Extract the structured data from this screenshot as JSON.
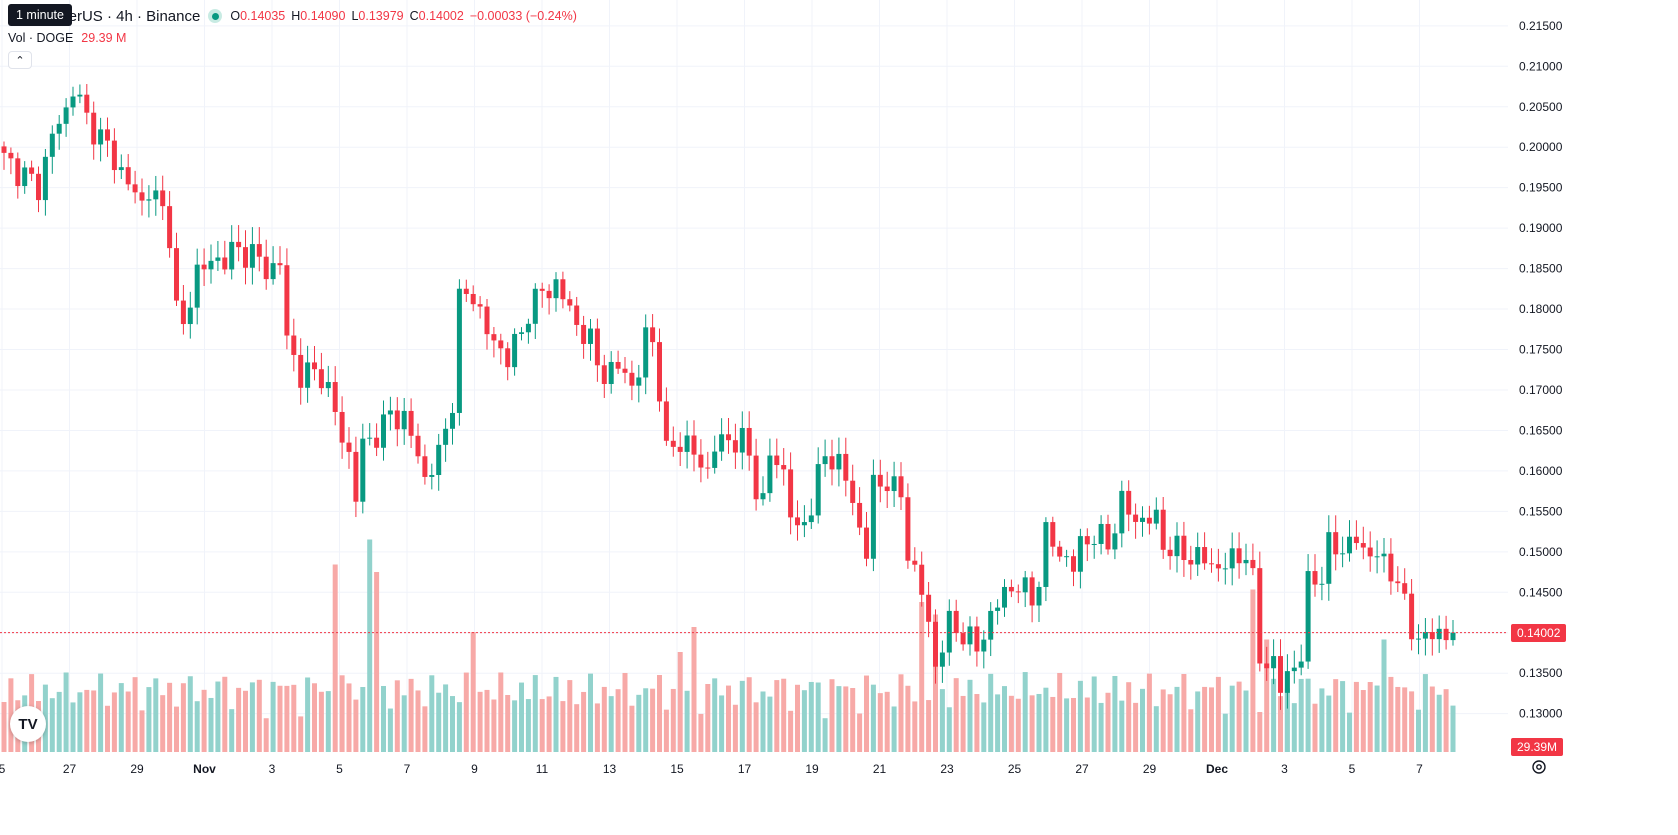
{
  "legend": {
    "symbol": "oin / TetherUS · 4h · Binance",
    "open_label": "O",
    "open": "0.14035",
    "high_label": "H",
    "high": "0.14090",
    "low_label": "L",
    "low": "0.13979",
    "close_label": "C",
    "close": "0.14002",
    "change": "−0.00033 (−0.24%)",
    "tooltip": "1 minute"
  },
  "volume_indicator": {
    "label": "Vol · DOGE",
    "value": "29.39 M"
  },
  "price_tag": {
    "last_price": "0.14002",
    "volume": "29.39M"
  },
  "colors": {
    "up": "#089981",
    "down": "#f23645",
    "up_volume": "#92d2cc",
    "down_volume": "#f7a9a7",
    "grid": "#f0f3fa"
  },
  "icons": {
    "logo": "tradingview-logo-icon",
    "collapse": "chevron-up-icon",
    "settings": "gear-icon",
    "status": "market-open-dot-icon"
  },
  "chart_data": {
    "type": "candlestick",
    "y_ticks": [
      "0.13000",
      "0.13500",
      "0.14000",
      "0.14500",
      "0.15000",
      "0.15500",
      "0.16000",
      "0.16500",
      "0.17000",
      "0.17500",
      "0.18000",
      "0.18500",
      "0.19000",
      "0.19500",
      "0.20000",
      "0.20500",
      "0.21000",
      "0.21500"
    ],
    "x_ticks": [
      "5",
      "27",
      "29",
      "Nov",
      "3",
      "5",
      "7",
      "9",
      "11",
      "13",
      "15",
      "17",
      "19",
      "21",
      "23",
      "25",
      "27",
      "29",
      "Dec",
      "3",
      "5",
      "7"
    ],
    "ylim": [
      0.1265,
      0.2165
    ],
    "last_price": 0.14002,
    "anchors": [
      [
        0,
        0.1985
      ],
      [
        3,
        0.1965
      ],
      [
        5,
        0.195
      ],
      [
        7,
        0.2015
      ],
      [
        9,
        0.2045
      ],
      [
        10,
        0.2075
      ],
      [
        12,
        0.2035
      ],
      [
        15,
        0.2
      ],
      [
        18,
        0.1955
      ],
      [
        20,
        0.193
      ],
      [
        21,
        0.195
      ],
      [
        23,
        0.192
      ],
      [
        24,
        0.1895
      ],
      [
        25,
        0.18
      ],
      [
        26,
        0.1775
      ],
      [
        28,
        0.185
      ],
      [
        30,
        0.1855
      ],
      [
        33,
        0.187
      ],
      [
        36,
        0.187
      ],
      [
        37,
        0.186
      ],
      [
        38,
        0.1845
      ],
      [
        40,
        0.186
      ],
      [
        41,
        0.176
      ],
      [
        43,
        0.172
      ],
      [
        46,
        0.172
      ],
      [
        47,
        0.17
      ],
      [
        49,
        0.164
      ],
      [
        50,
        0.162
      ],
      [
        51,
        0.157
      ],
      [
        52,
        0.163
      ],
      [
        55,
        0.1655
      ],
      [
        56,
        0.167
      ],
      [
        58,
        0.1665
      ],
      [
        60,
        0.162
      ],
      [
        61,
        0.159
      ],
      [
        63,
        0.162
      ],
      [
        64,
        0.165
      ],
      [
        65,
        0.169
      ],
      [
        66,
        0.181
      ],
      [
        68,
        0.182
      ],
      [
        70,
        0.177
      ],
      [
        72,
        0.175
      ],
      [
        73,
        0.174
      ],
      [
        75,
        0.177
      ],
      [
        76,
        0.18
      ],
      [
        78,
        0.182
      ],
      [
        80,
        0.183
      ],
      [
        82,
        0.18
      ],
      [
        83,
        0.178
      ],
      [
        85,
        0.176
      ],
      [
        86,
        0.173
      ],
      [
        88,
        0.172
      ],
      [
        90,
        0.173
      ],
      [
        91,
        0.17
      ],
      [
        92,
        0.172
      ],
      [
        93,
        0.177
      ],
      [
        94,
        0.176
      ],
      [
        95,
        0.17
      ],
      [
        96,
        0.162
      ],
      [
        98,
        0.164
      ],
      [
        100,
        0.162
      ],
      [
        102,
        0.16
      ],
      [
        103,
        0.163
      ],
      [
        105,
        0.164
      ],
      [
        107,
        0.1635
      ],
      [
        108,
        0.162
      ],
      [
        109,
        0.158
      ],
      [
        110,
        0.156
      ],
      [
        111,
        0.162
      ],
      [
        113,
        0.16
      ],
      [
        114,
        0.155
      ],
      [
        115,
        0.152
      ],
      [
        117,
        0.156
      ],
      [
        119,
        0.162
      ],
      [
        121,
        0.161
      ],
      [
        122,
        0.159
      ],
      [
        123,
        0.156
      ],
      [
        125,
        0.15
      ],
      [
        126,
        0.158
      ],
      [
        128,
        0.159
      ],
      [
        129,
        0.1575
      ],
      [
        130,
        0.157
      ],
      [
        131,
        0.15
      ],
      [
        133,
        0.145
      ],
      [
        134,
        0.141
      ],
      [
        135,
        0.136
      ],
      [
        137,
        0.141
      ],
      [
        139,
        0.14
      ],
      [
        141,
        0.138
      ],
      [
        143,
        0.142
      ],
      [
        145,
        0.145
      ],
      [
        147,
        0.146
      ],
      [
        149,
        0.144
      ],
      [
        150,
        0.147
      ],
      [
        151,
        0.152
      ],
      [
        153,
        0.15
      ],
      [
        155,
        0.148
      ],
      [
        156,
        0.151
      ],
      [
        158,
        0.152
      ],
      [
        160,
        0.151
      ],
      [
        162,
        0.156
      ],
      [
        164,
        0.154
      ],
      [
        167,
        0.154
      ],
      [
        168,
        0.151
      ],
      [
        170,
        0.15
      ],
      [
        172,
        0.1495
      ],
      [
        174,
        0.149
      ],
      [
        176,
        0.148
      ],
      [
        178,
        0.149
      ],
      [
        180,
        0.15
      ],
      [
        181,
        0.146
      ],
      [
        182,
        0.137
      ],
      [
        184,
        0.136
      ],
      [
        185,
        0.133
      ],
      [
        186,
        0.135
      ],
      [
        188,
        0.137
      ],
      [
        189,
        0.146
      ],
      [
        190,
        0.147
      ],
      [
        191,
        0.147
      ],
      [
        192,
        0.1505
      ],
      [
        194,
        0.1505
      ],
      [
        196,
        0.1515
      ],
      [
        197,
        0.15
      ],
      [
        199,
        0.15
      ],
      [
        200,
        0.148
      ],
      [
        202,
        0.147
      ],
      [
        203,
        0.143
      ],
      [
        204,
        0.14
      ],
      [
        206,
        0.1395
      ],
      [
        208,
        0.1397
      ],
      [
        210,
        0.1401
      ]
    ],
    "volume_spikes": [
      [
        48,
        0.75
      ],
      [
        53,
        0.85
      ],
      [
        54,
        0.72
      ],
      [
        68,
        0.48
      ],
      [
        98,
        0.4
      ],
      [
        100,
        0.5
      ],
      [
        133,
        0.6
      ],
      [
        135,
        0.55
      ],
      [
        181,
        0.65
      ],
      [
        183,
        0.45
      ],
      [
        200,
        0.45
      ]
    ]
  }
}
